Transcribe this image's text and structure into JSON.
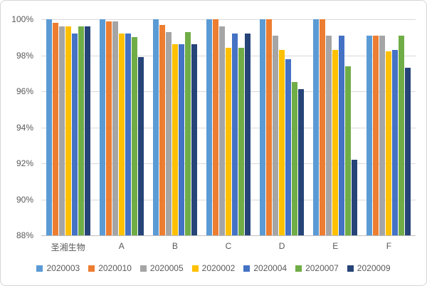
{
  "chart_data": {
    "type": "bar",
    "title": "",
    "xlabel": "",
    "ylabel": "",
    "categories": [
      "圣湘生物",
      "A",
      "B",
      "C",
      "D",
      "E",
      "F"
    ],
    "series": [
      {
        "name": "2020003",
        "color": "#5B9BD5",
        "values": [
          100,
          100,
          100,
          100,
          100,
          100,
          99.1
        ]
      },
      {
        "name": "2020010",
        "color": "#ED7D31",
        "values": [
          99.8,
          99.9,
          99.7,
          100,
          100,
          100,
          99.1
        ]
      },
      {
        "name": "2020005",
        "color": "#A5A5A5",
        "values": [
          99.6,
          99.9,
          99.3,
          99.6,
          99.1,
          99.1,
          99.1
        ]
      },
      {
        "name": "2020002",
        "color": "#FFC000",
        "values": [
          99.6,
          99.2,
          98.6,
          98.4,
          98.3,
          98.3,
          98.2
        ]
      },
      {
        "name": "2020004",
        "color": "#4472C4",
        "values": [
          99.2,
          99.2,
          98.6,
          99.2,
          97.8,
          99.1,
          98.3
        ]
      },
      {
        "name": "2020007",
        "color": "#70AD47",
        "values": [
          99.6,
          99.0,
          99.3,
          98.4,
          96.5,
          97.4,
          99.1
        ]
      },
      {
        "name": "2020009",
        "color": "#264478",
        "values": [
          99.6,
          97.9,
          98.6,
          99.2,
          96.1,
          92.2,
          97.3
        ]
      }
    ],
    "ylim": [
      88,
      100
    ],
    "ytick_step": 2,
    "yticks": [
      "100%",
      "98%",
      "96%",
      "94%",
      "92%",
      "90%",
      "88%"
    ],
    "grid": true,
    "legend_position": "bottom"
  },
  "style": {
    "axis_text_color": "#595959",
    "gridline_color": "#D9D9D9",
    "baseline_color": "#BFBFBF",
    "border_color": "#D6D6D6",
    "background": "#FFFFFF"
  }
}
